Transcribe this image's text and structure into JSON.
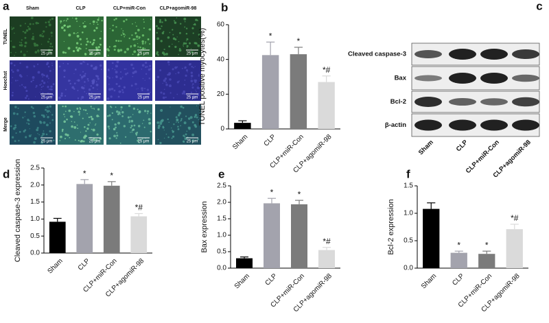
{
  "panel_a": {
    "label": "a",
    "columns": [
      "Sham",
      "CLP",
      "CLP+miR-Con",
      "CLP+agomiR-98"
    ],
    "rows": [
      "TUNEL",
      "Hoechst",
      "Merge"
    ],
    "scale_bar": "25 μm"
  },
  "panel_c": {
    "label": "c",
    "proteins": [
      "Cleaved caspase-3",
      "Bax",
      "Bcl-2",
      "β-actin"
    ],
    "columns": [
      "Sham",
      "CLP",
      "CLP+miR-Con",
      "CLP+agomiR-98"
    ]
  },
  "chart_data": [
    {
      "type": "bar",
      "panel": "b",
      "y_label": "TUNEL positive myocytes(%)",
      "categories": [
        "Sham",
        "CLP",
        "CLP+miR-Con",
        "CLP+agomiR-98"
      ],
      "values": [
        3.5,
        42.5,
        43,
        27
      ],
      "errors": [
        1.2,
        7.5,
        4,
        3.5
      ],
      "annotations": [
        null,
        "*",
        "*",
        "*#"
      ],
      "colors": [
        "#000000",
        "#a3a3ad",
        "#7b7b7b",
        "#dadada"
      ],
      "ylim": [
        0,
        60
      ],
      "yticks": [
        0,
        20,
        40,
        60
      ]
    },
    {
      "type": "bar",
      "panel": "d",
      "y_label": "Cleaved caspase-3 expression",
      "categories": [
        "Sham",
        "CLP",
        "CLP+miR-Con",
        "CLP+agomiR-98"
      ],
      "values": [
        0.92,
        2.03,
        1.98,
        1.08
      ],
      "errors": [
        0.1,
        0.13,
        0.12,
        0.08
      ],
      "annotations": [
        null,
        "*",
        "*",
        "*#"
      ],
      "colors": [
        "#000000",
        "#a3a3ad",
        "#7b7b7b",
        "#dadada"
      ],
      "ylim": [
        0,
        2.5
      ],
      "yticks": [
        {
          "value": 0,
          "label": "0.0"
        },
        {
          "value": 0.5,
          "label": "0.5"
        },
        {
          "value": 1,
          "label": "1.0"
        },
        {
          "value": 1.5,
          "label": "1.5"
        },
        {
          "value": 2,
          "label": "2.0"
        },
        {
          "value": 2.5,
          "label": "2.5"
        }
      ]
    },
    {
      "type": "bar",
      "panel": "e",
      "y_label": "Bax expression",
      "categories": [
        "Sham",
        "CLP",
        "CLP+miR-Con",
        "CLP+agomiR-98"
      ],
      "values": [
        0.3,
        1.97,
        1.94,
        0.55
      ],
      "errors": [
        0.04,
        0.15,
        0.12,
        0.08
      ],
      "annotations": [
        null,
        "*",
        "*",
        "*#"
      ],
      "colors": [
        "#000000",
        "#a3a3ad",
        "#7b7b7b",
        "#dadada"
      ],
      "ylim": [
        0,
        2.5
      ],
      "yticks": [
        {
          "value": 0,
          "label": "0.0"
        },
        {
          "value": 0.5,
          "label": "0.5"
        },
        {
          "value": 1,
          "label": "1.0"
        },
        {
          "value": 1.5,
          "label": "1.5"
        },
        {
          "value": 2,
          "label": "2.0"
        },
        {
          "value": 2.5,
          "label": "2.5"
        }
      ]
    },
    {
      "type": "bar",
      "panel": "f",
      "y_label": "Bcl-2 expression",
      "categories": [
        "Sham",
        "CLP",
        "CLP+miR-Con",
        "CLP+agomiR-98"
      ],
      "values": [
        1.08,
        0.28,
        0.26,
        0.71
      ],
      "errors": [
        0.11,
        0.03,
        0.05,
        0.09
      ],
      "annotations": [
        null,
        "*",
        "*",
        "*#"
      ],
      "colors": [
        "#000000",
        "#a3a3ad",
        "#7b7b7b",
        "#dadada"
      ],
      "ylim": [
        0,
        1.5
      ],
      "yticks": [
        {
          "value": 0,
          "label": "0.0"
        },
        {
          "value": 0.5,
          "label": "0.5"
        },
        {
          "value": 1,
          "label": "1.0"
        },
        {
          "value": 1.5,
          "label": "1.5"
        }
      ]
    }
  ]
}
